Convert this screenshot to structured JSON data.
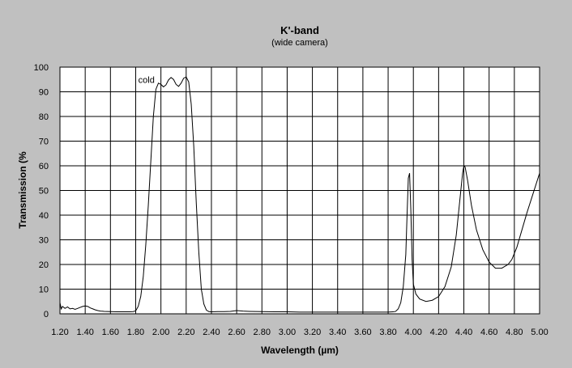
{
  "chart_data": {
    "type": "line",
    "title": "K'-band",
    "subtitle": "(wide camera)",
    "xlabel": "Wavelength (µm)",
    "ylabel": "Transmission (%",
    "xlim": [
      1.2,
      5.0
    ],
    "ylim": [
      0,
      100
    ],
    "x_ticks": [
      "1.20",
      "1.40",
      "1.60",
      "1.80",
      "2.00",
      "2.20",
      "2.40",
      "2.60",
      "2.80",
      "3.00",
      "3.20",
      "3.40",
      "3.60",
      "3.80",
      "4.00",
      "4.20",
      "4.40",
      "4.60",
      "4.80",
      "5.00"
    ],
    "y_ticks": [
      "0",
      "10",
      "20",
      "30",
      "40",
      "50",
      "60",
      "70",
      "80",
      "90",
      "100"
    ],
    "grid": true,
    "legend": "none",
    "annotations": [
      {
        "text": "cold",
        "x": 1.95,
        "y": 95
      }
    ],
    "series": [
      {
        "color": "#000000",
        "points": [
          [
            1.2,
            4.5
          ],
          [
            1.21,
            2.0
          ],
          [
            1.22,
            3.0
          ],
          [
            1.24,
            2.2
          ],
          [
            1.26,
            2.8
          ],
          [
            1.28,
            2.0
          ],
          [
            1.3,
            2.2
          ],
          [
            1.32,
            1.8
          ],
          [
            1.34,
            2.2
          ],
          [
            1.36,
            2.6
          ],
          [
            1.38,
            3.0
          ],
          [
            1.4,
            3.2
          ],
          [
            1.42,
            3.0
          ],
          [
            1.44,
            2.4
          ],
          [
            1.46,
            2.0
          ],
          [
            1.48,
            1.6
          ],
          [
            1.5,
            1.3
          ],
          [
            1.52,
            1.1
          ],
          [
            1.55,
            1.0
          ],
          [
            1.6,
            0.9
          ],
          [
            1.65,
            0.8
          ],
          [
            1.7,
            0.8
          ],
          [
            1.75,
            0.8
          ],
          [
            1.78,
            0.9
          ],
          [
            1.8,
            1.2
          ],
          [
            1.82,
            3.0
          ],
          [
            1.84,
            7.0
          ],
          [
            1.86,
            15.0
          ],
          [
            1.88,
            28.0
          ],
          [
            1.9,
            44.0
          ],
          [
            1.92,
            62.0
          ],
          [
            1.94,
            80.0
          ],
          [
            1.96,
            91.0
          ],
          [
            1.98,
            93.5
          ],
          [
            2.0,
            93.0
          ],
          [
            2.02,
            92.0
          ],
          [
            2.04,
            92.8
          ],
          [
            2.06,
            94.8
          ],
          [
            2.08,
            95.8
          ],
          [
            2.1,
            95.0
          ],
          [
            2.12,
            93.0
          ],
          [
            2.14,
            92.2
          ],
          [
            2.16,
            93.5
          ],
          [
            2.18,
            95.5
          ],
          [
            2.2,
            96.0
          ],
          [
            2.22,
            94.0
          ],
          [
            2.24,
            85.0
          ],
          [
            2.26,
            68.0
          ],
          [
            2.28,
            45.0
          ],
          [
            2.3,
            25.0
          ],
          [
            2.32,
            10.0
          ],
          [
            2.34,
            4.0
          ],
          [
            2.36,
            1.5
          ],
          [
            2.38,
            0.9
          ],
          [
            2.4,
            0.8
          ],
          [
            2.45,
            0.9
          ],
          [
            2.5,
            0.9
          ],
          [
            2.55,
            1.0
          ],
          [
            2.6,
            1.3
          ],
          [
            2.65,
            1.1
          ],
          [
            2.7,
            1.0
          ],
          [
            2.8,
            0.9
          ],
          [
            2.9,
            0.8
          ],
          [
            3.0,
            0.8
          ],
          [
            3.1,
            0.7
          ],
          [
            3.2,
            0.7
          ],
          [
            3.3,
            0.7
          ],
          [
            3.4,
            0.7
          ],
          [
            3.5,
            0.7
          ],
          [
            3.6,
            0.7
          ],
          [
            3.7,
            0.7
          ],
          [
            3.8,
            0.7
          ],
          [
            3.84,
            0.8
          ],
          [
            3.86,
            1.0
          ],
          [
            3.88,
            2.0
          ],
          [
            3.9,
            4.5
          ],
          [
            3.92,
            11.0
          ],
          [
            3.94,
            24.0
          ],
          [
            3.95,
            40.0
          ],
          [
            3.96,
            55.0
          ],
          [
            3.97,
            57.0
          ],
          [
            3.98,
            42.0
          ],
          [
            3.99,
            22.0
          ],
          [
            4.0,
            12.0
          ],
          [
            4.02,
            8.0
          ],
          [
            4.05,
            6.0
          ],
          [
            4.1,
            5.0
          ],
          [
            4.15,
            5.5
          ],
          [
            4.2,
            7.0
          ],
          [
            4.25,
            11.0
          ],
          [
            4.3,
            19.0
          ],
          [
            4.34,
            32.0
          ],
          [
            4.37,
            47.0
          ],
          [
            4.39,
            57.0
          ],
          [
            4.4,
            60.0
          ],
          [
            4.41,
            59.5
          ],
          [
            4.43,
            54.0
          ],
          [
            4.46,
            44.0
          ],
          [
            4.5,
            34.0
          ],
          [
            4.55,
            26.0
          ],
          [
            4.6,
            21.0
          ],
          [
            4.65,
            18.5
          ],
          [
            4.7,
            18.5
          ],
          [
            4.75,
            20.0
          ],
          [
            4.78,
            22.0
          ],
          [
            4.82,
            27.0
          ],
          [
            4.86,
            34.0
          ],
          [
            4.9,
            41.0
          ],
          [
            4.95,
            49.0
          ],
          [
            5.0,
            57.0
          ]
        ]
      }
    ]
  }
}
